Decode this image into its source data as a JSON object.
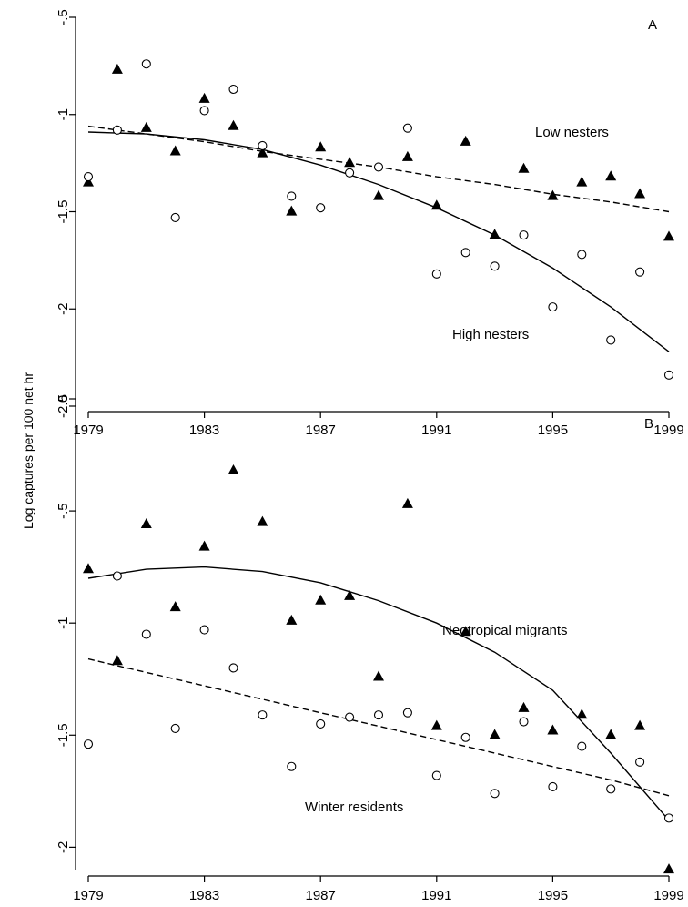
{
  "ylabel": "Log captures per 100 net hr",
  "chart_data": [
    {
      "type": "scatter",
      "panel": "A",
      "xlim": [
        1979,
        1999
      ],
      "ylim": [
        -2.5,
        -0.5
      ],
      "xticks": [
        "1979",
        "1983",
        "1987",
        "1991",
        "1995",
        "1999"
      ],
      "yticks": [
        "-.5",
        "-1",
        "-1.5",
        "-2",
        "-2.5"
      ],
      "annotations": [
        "Low nesters",
        "High nesters"
      ],
      "series": [
        {
          "marker": "filled-triangle",
          "line": "dashed",
          "x": [
            1979,
            1980,
            1981,
            1982,
            1983,
            1984,
            1985,
            1986,
            1987,
            1988,
            1989,
            1990,
            1991,
            1992,
            1993,
            1994,
            1995,
            1996,
            1997,
            1998,
            1999
          ],
          "y": [
            -1.35,
            -0.77,
            -1.07,
            -1.19,
            -0.92,
            -1.06,
            -1.2,
            -1.5,
            -1.17,
            -1.25,
            -1.42,
            -1.22,
            -1.47,
            -1.14,
            -1.62,
            -1.28,
            -1.42,
            -1.35,
            -1.32,
            -1.41,
            -1.63
          ],
          "fit": [
            [
              1979,
              -1.06
            ],
            [
              1981,
              -1.1
            ],
            [
              1983,
              -1.14
            ],
            [
              1985,
              -1.19
            ],
            [
              1987,
              -1.23
            ],
            [
              1989,
              -1.27
            ],
            [
              1991,
              -1.32
            ],
            [
              1993,
              -1.36
            ],
            [
              1995,
              -1.41
            ],
            [
              1997,
              -1.45
            ],
            [
              1999,
              -1.5
            ]
          ]
        },
        {
          "marker": "open-circle",
          "line": "solid",
          "x": [
            1979,
            1980,
            1981,
            1982,
            1983,
            1984,
            1985,
            1986,
            1987,
            1988,
            1989,
            1990,
            1991,
            1992,
            1993,
            1994,
            1995,
            1996,
            1997,
            1998,
            1999
          ],
          "y": [
            -1.32,
            -1.08,
            -0.74,
            -1.53,
            -0.98,
            -0.87,
            -1.16,
            -1.42,
            -1.48,
            -1.3,
            -1.27,
            -1.07,
            -1.82,
            -1.71,
            -1.78,
            -1.62,
            -1.99,
            -1.72,
            -2.16,
            -1.81,
            -2.34
          ],
          "fit": [
            [
              1979,
              -1.09
            ],
            [
              1981,
              -1.1
            ],
            [
              1983,
              -1.13
            ],
            [
              1985,
              -1.18
            ],
            [
              1987,
              -1.26
            ],
            [
              1989,
              -1.36
            ],
            [
              1991,
              -1.48
            ],
            [
              1993,
              -1.62
            ],
            [
              1995,
              -1.79
            ],
            [
              1997,
              -1.99
            ],
            [
              1999,
              -2.22
            ]
          ]
        }
      ]
    },
    {
      "type": "scatter",
      "panel": "B",
      "xlim": [
        1979,
        1999
      ],
      "ylim": [
        -2.1,
        0
      ],
      "xticks": [
        "1979",
        "1983",
        "1987",
        "1991",
        "1995",
        "1999"
      ],
      "yticks": [
        "0",
        "-.5",
        "-1",
        "-1.5",
        "-2"
      ],
      "annotations": [
        "Neotropical migrants",
        "Winter residents"
      ],
      "series": [
        {
          "marker": "filled-triangle",
          "line": "solid",
          "x": [
            1979,
            1980,
            1981,
            1982,
            1983,
            1984,
            1985,
            1986,
            1987,
            1988,
            1989,
            1990,
            1991,
            1992,
            1993,
            1994,
            1995,
            1996,
            1997,
            1998,
            1999
          ],
          "y": [
            -0.76,
            -1.17,
            -0.56,
            -0.93,
            -0.66,
            -0.32,
            -0.55,
            -0.99,
            -0.9,
            -0.88,
            -1.24,
            -0.47,
            -1.46,
            -1.04,
            -1.5,
            -1.38,
            -1.48,
            -1.41,
            -1.5,
            -1.46,
            -2.1
          ],
          "fit": [
            [
              1979,
              -0.8
            ],
            [
              1981,
              -0.76
            ],
            [
              1983,
              -0.75
            ],
            [
              1985,
              -0.77
            ],
            [
              1987,
              -0.82
            ],
            [
              1989,
              -0.9
            ],
            [
              1991,
              -1.0
            ],
            [
              1993,
              -1.13
            ],
            [
              1995,
              -1.3
            ],
            [
              1997,
              -1.58
            ],
            [
              1999,
              -1.88
            ]
          ]
        },
        {
          "marker": "open-circle",
          "line": "dashed",
          "x": [
            1979,
            1980,
            1981,
            1982,
            1983,
            1984,
            1985,
            1986,
            1987,
            1988,
            1989,
            1990,
            1991,
            1992,
            1993,
            1994,
            1995,
            1996,
            1997,
            1998,
            1999
          ],
          "y": [
            -1.54,
            -0.79,
            -1.05,
            -1.47,
            -1.03,
            -1.2,
            -1.41,
            -1.64,
            -1.45,
            -1.42,
            -1.41,
            -1.4,
            -1.68,
            -1.51,
            -1.76,
            -1.44,
            -1.73,
            -1.55,
            -1.74,
            -1.62,
            -1.87
          ],
          "fit": [
            [
              1979,
              -1.16
            ],
            [
              1981,
              -1.22
            ],
            [
              1983,
              -1.28
            ],
            [
              1985,
              -1.34
            ],
            [
              1987,
              -1.4
            ],
            [
              1989,
              -1.46
            ],
            [
              1991,
              -1.52
            ],
            [
              1993,
              -1.58
            ],
            [
              1995,
              -1.64
            ],
            [
              1997,
              -1.7
            ],
            [
              1999,
              -1.77
            ]
          ]
        }
      ]
    }
  ]
}
